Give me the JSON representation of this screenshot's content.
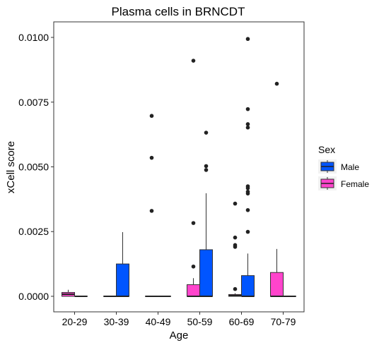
{
  "chart_data": {
    "type": "boxplot",
    "title": "Plasma cells in BRNCDT",
    "xlabel": "Age",
    "ylabel": "xCell score",
    "ylim": [
      -0.0006,
      0.0106
    ],
    "y_ticks": [
      0.0,
      0.0025,
      0.005,
      0.0075,
      0.01
    ],
    "y_tick_labels": [
      "0.0000",
      "0.0025",
      "0.0050",
      "0.0075",
      "0.0100"
    ],
    "categories": [
      "20-29",
      "30-39",
      "40-49",
      "50-59",
      "60-69",
      "70-79"
    ],
    "grid": false,
    "legend": {
      "title": "Sex",
      "position": "right",
      "entries": [
        {
          "name": "Male",
          "color": "#0055FF"
        },
        {
          "name": "Female",
          "color": "#FF44CC"
        }
      ]
    },
    "series": [
      {
        "name": "Male",
        "color": "#0055FF",
        "boxes": [
          {
            "category": "20-29",
            "min": 0,
            "q1": 0,
            "median": 0,
            "q3": 0,
            "max": 0,
            "outliers": []
          },
          {
            "category": "30-39",
            "min": 0,
            "q1": 0,
            "median": 0,
            "q3": 0.00125,
            "max": 0.00248,
            "outliers": []
          },
          {
            "category": "40-49",
            "min": 0,
            "q1": 0,
            "median": 0,
            "q3": 0,
            "max": 0,
            "outliers": []
          },
          {
            "category": "50-59",
            "min": 0,
            "q1": 0,
            "median": 0,
            "q3": 0.0018,
            "max": 0.00398,
            "outliers": [
              0.00632,
              0.00503,
              0.00488
            ]
          },
          {
            "category": "60-69",
            "min": 0,
            "q1": 0,
            "median": 0,
            "q3": 0.0008,
            "max": 0.00165,
            "outliers": [
              0.00994,
              0.00723,
              0.00665,
              0.00652,
              0.00425,
              0.00418,
              0.00404,
              0.00397,
              0.00333,
              0.00249
            ]
          },
          {
            "category": "70-79",
            "min": 0,
            "q1": 0,
            "median": 0,
            "q3": 0,
            "max": 0,
            "outliers": []
          }
        ]
      },
      {
        "name": "Female",
        "color": "#FF44CC",
        "boxes": [
          {
            "category": "20-29",
            "min": 0,
            "q1": 0,
            "median": 8e-05,
            "q3": 0.00015,
            "max": 0.00025,
            "outliers": []
          },
          {
            "category": "30-39",
            "min": 0,
            "q1": 0,
            "median": 0,
            "q3": 0,
            "max": 0,
            "outliers": []
          },
          {
            "category": "40-49",
            "min": 0,
            "q1": 0,
            "median": 0,
            "q3": 0,
            "max": 0,
            "outliers": [
              0.00697,
              0.00535,
              0.0033
            ]
          },
          {
            "category": "50-59",
            "min": 0,
            "q1": 0,
            "median": 0,
            "q3": 0.00045,
            "max": 0.0007,
            "outliers": [
              0.0091,
              0.00283,
              0.00115
            ]
          },
          {
            "category": "60-69",
            "min": 0,
            "q1": 0,
            "median": 3e-05,
            "q3": 7e-05,
            "max": 0.00012,
            "outliers": [
              0.00358,
              0.00227,
              0.00198,
              0.00191,
              0.00028
            ]
          },
          {
            "category": "70-79",
            "min": 0,
            "q1": 0,
            "median": 0,
            "q3": 0.00092,
            "max": 0.00183,
            "outliers": [
              0.00821
            ]
          }
        ]
      }
    ]
  }
}
